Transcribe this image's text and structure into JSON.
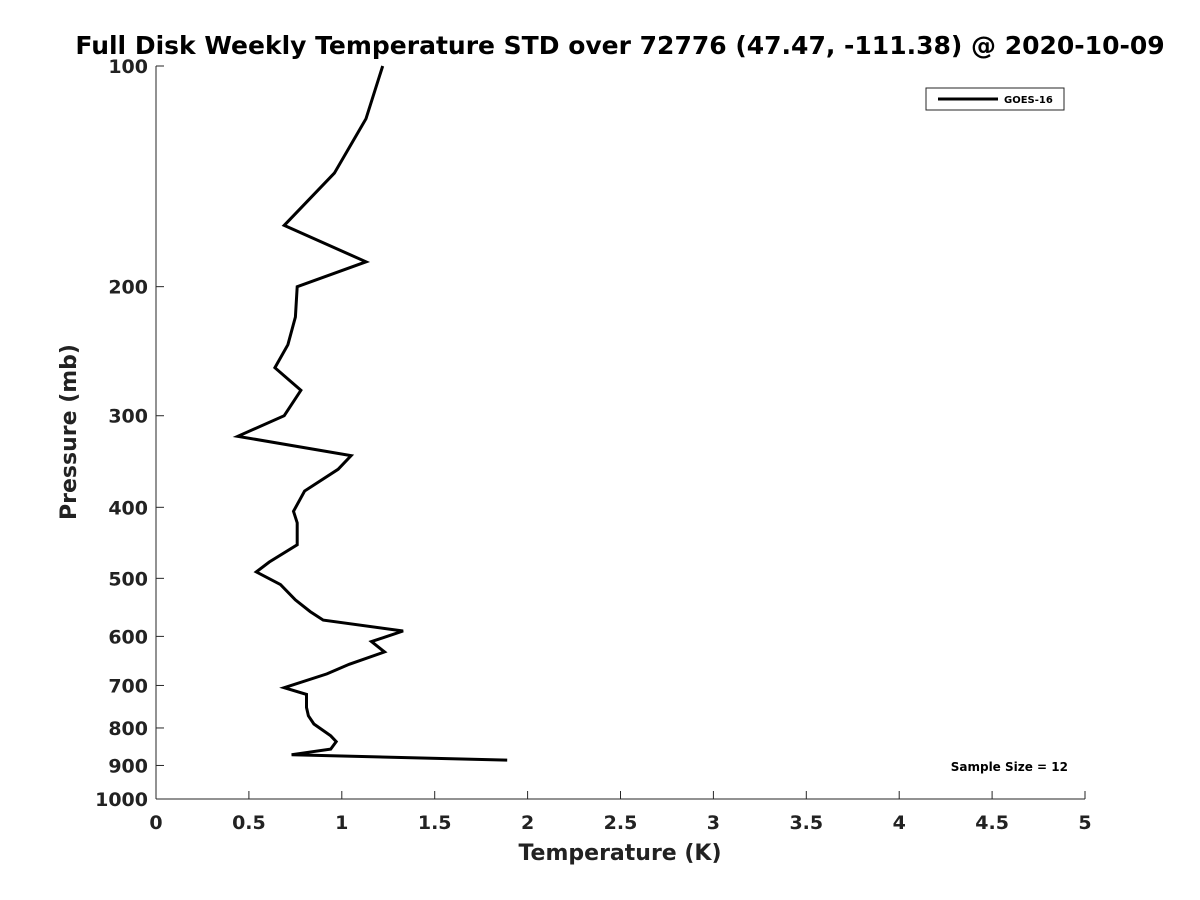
{
  "chart_data": {
    "type": "line",
    "title": "Full Disk Weekly Temperature STD over 72776 (47.47, -111.38) @ 2020-10-09",
    "xlabel": "Temperature (K)",
    "ylabel": "Pressure (mb)",
    "xlim": [
      0,
      5
    ],
    "ylim": [
      100,
      1000
    ],
    "y_scale": "log",
    "y_reversed": true,
    "x_ticks": [
      "0",
      "0.5",
      "1",
      "1.5",
      "2",
      "2.5",
      "3",
      "3.5",
      "4",
      "4.5",
      "5"
    ],
    "y_ticks": [
      "100",
      "200",
      "300",
      "400",
      "500",
      "600",
      "700",
      "800",
      "900",
      "1000"
    ],
    "grid": false,
    "legend_position": "top-right",
    "annotation": "Sample Size = 12",
    "series": [
      {
        "name": "GOES-16",
        "color": "#000000",
        "points": [
          [
            1.22,
            100
          ],
          [
            1.13,
            118
          ],
          [
            0.96,
            140
          ],
          [
            0.69,
            165
          ],
          [
            1.13,
            185
          ],
          [
            0.76,
            200
          ],
          [
            0.75,
            220
          ],
          [
            0.71,
            240
          ],
          [
            0.64,
            258
          ],
          [
            0.78,
            277
          ],
          [
            0.69,
            300
          ],
          [
            0.44,
            320
          ],
          [
            1.05,
            340
          ],
          [
            0.98,
            355
          ],
          [
            0.8,
            380
          ],
          [
            0.74,
            405
          ],
          [
            0.76,
            420
          ],
          [
            0.76,
            450
          ],
          [
            0.61,
            475
          ],
          [
            0.54,
            490
          ],
          [
            0.67,
            510
          ],
          [
            0.75,
            535
          ],
          [
            0.83,
            555
          ],
          [
            0.9,
            570
          ],
          [
            1.33,
            590
          ],
          [
            1.16,
            610
          ],
          [
            1.23,
            630
          ],
          [
            1.04,
            655
          ],
          [
            0.92,
            675
          ],
          [
            0.69,
            705
          ],
          [
            0.81,
            720
          ],
          [
            0.81,
            750
          ],
          [
            0.82,
            770
          ],
          [
            0.85,
            790
          ],
          [
            0.94,
            820
          ],
          [
            0.97,
            835
          ],
          [
            0.94,
            855
          ],
          [
            0.73,
            870
          ],
          [
            1.89,
            885
          ]
        ]
      }
    ]
  }
}
